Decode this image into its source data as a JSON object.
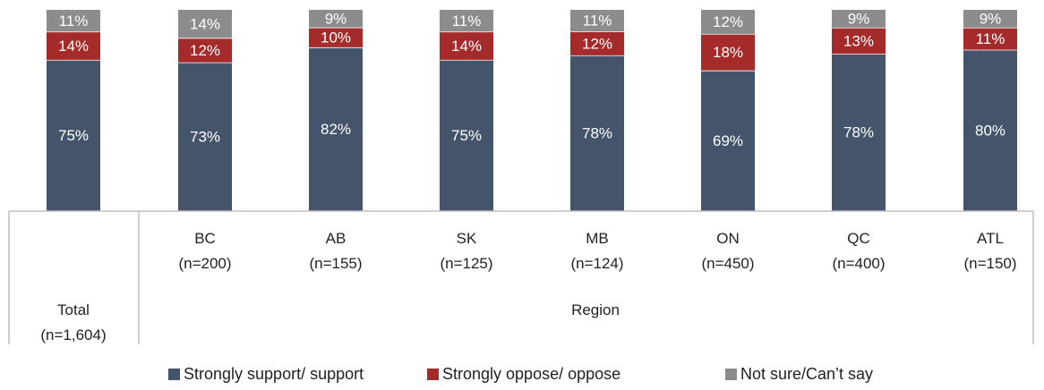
{
  "chart_data": {
    "type": "bar",
    "stacked": true,
    "percent_stacked": true,
    "groups": [
      {
        "label": "Total",
        "sublabel": "(n=1,604)",
        "group": ""
      },
      {
        "label": "BC",
        "sublabel": "(n=200)",
        "group": "Region"
      },
      {
        "label": "AB",
        "sublabel": "(n=155)",
        "group": "Region"
      },
      {
        "label": "SK",
        "sublabel": "(n=125)",
        "group": "Region"
      },
      {
        "label": "MB",
        "sublabel": "(n=124)",
        "group": "Region"
      },
      {
        "label": "ON",
        "sublabel": "(n=450)",
        "group": "Region"
      },
      {
        "label": "QC",
        "sublabel": "(n=400)",
        "group": "Region"
      },
      {
        "label": "ATL",
        "sublabel": "(n=150)",
        "group": "Region"
      }
    ],
    "category_group_label": "Region",
    "series": [
      {
        "name": "Strongly support/ support",
        "color": "#44546A",
        "values": [
          75,
          73,
          82,
          75,
          78,
          69,
          78,
          80
        ],
        "labels": [
          "75%",
          "73%",
          "82%",
          "75%",
          "78%",
          "69%",
          "78%",
          "80%"
        ]
      },
      {
        "name": "Strongly oppose/ oppose",
        "color": "#A52A2A",
        "values": [
          14,
          12,
          10,
          14,
          12,
          18,
          13,
          11
        ],
        "labels": [
          "14%",
          "12%",
          "10%",
          "14%",
          "12%",
          "18%",
          "13%",
          "11%"
        ]
      },
      {
        "name": "Not sure/Can’t say",
        "color": "#8C8C8C",
        "values": [
          11,
          14,
          9,
          11,
          11,
          12,
          9,
          9
        ],
        "labels": [
          "11%",
          "14%",
          "9%",
          "11%",
          "11%",
          "12%",
          "9%",
          "9%"
        ]
      }
    ],
    "legend_position": "bottom",
    "grid": false
  }
}
